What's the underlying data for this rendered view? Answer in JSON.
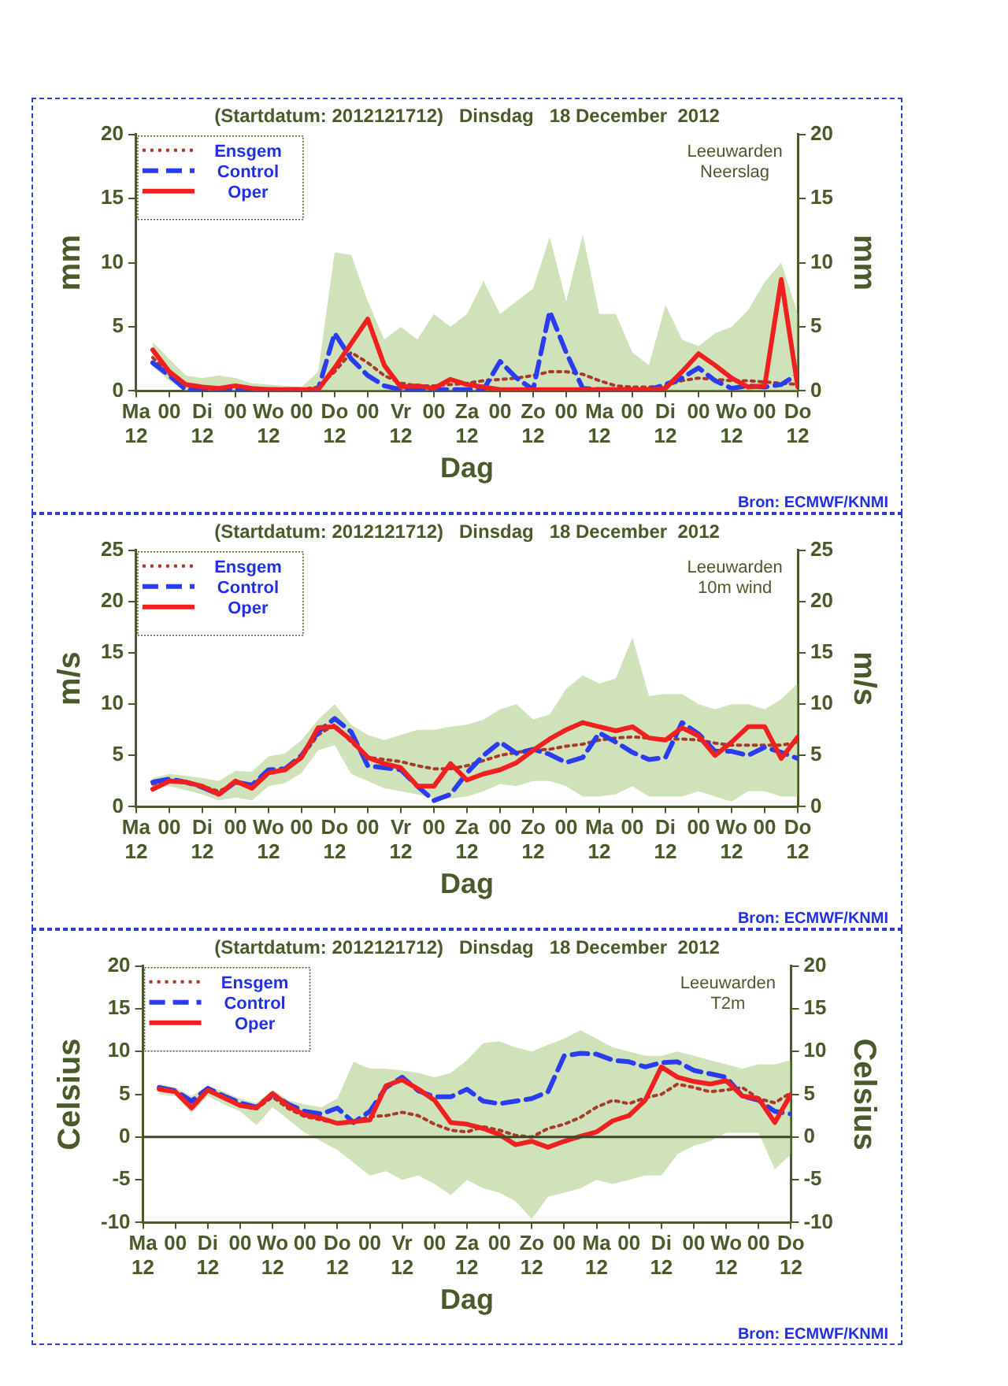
{
  "chart_data": [
    {
      "type": "line",
      "title": "(Startdatum: 2012121712)   Dinsdag   18 December  2012",
      "xlabel": "Dag",
      "ylabel": "mm",
      "y2label": "mm",
      "annotations": [
        "Leeuwarden",
        "Neerslag",
        "Bron: ECMWF/KNMI"
      ],
      "legend": "top left",
      "grid": false,
      "categories": [
        "Ma 12",
        null,
        "00",
        null,
        "Di 12",
        null,
        "00",
        null,
        "Wo 12",
        null,
        "00",
        null,
        "Do 12",
        null,
        "00",
        null,
        "Vr 12",
        null,
        "00",
        null,
        "Za 12",
        null,
        "00",
        null,
        "Zo 12",
        null,
        "00",
        null,
        "Ma 12",
        null,
        "00",
        null,
        "Di 12",
        null,
        "00",
        null,
        "Wo 12",
        null,
        "00",
        null,
        "Do 12"
      ],
      "ylim": [
        0,
        20
      ],
      "yticks": [
        0,
        5,
        10,
        15,
        20
      ],
      "y2lim": [
        0,
        20
      ],
      "y2ticks": [
        0,
        5,
        10,
        15,
        20
      ],
      "series": [
        {
          "name": "Ensgem",
          "color": "#a83a2a",
          "line_style": "dotted",
          "values": [
            null,
            2.6,
            1.3,
            0.4,
            0.3,
            0.2,
            0.3,
            0.2,
            0.1,
            0.1,
            0.1,
            0.3,
            1.5,
            3.0,
            2.2,
            1.2,
            0.6,
            0.4,
            0.4,
            0.5,
            0.6,
            0.8,
            0.9,
            1.0,
            1.2,
            1.5,
            1.5,
            1.3,
            0.8,
            0.4,
            0.3,
            0.3,
            0.4,
            0.8,
            1.0,
            0.9,
            0.8,
            0.8,
            0.7,
            0.6,
            0.5
          ],
          "lower": [
            null,
            1.9,
            0.8,
            0,
            0,
            0,
            0,
            0,
            0,
            0,
            0,
            0,
            0,
            0,
            0,
            0,
            0,
            0,
            0,
            0,
            0,
            0,
            0,
            0,
            0,
            0,
            0,
            0,
            0,
            0,
            0,
            0,
            0,
            0,
            0,
            0,
            0,
            0,
            0,
            0,
            0
          ],
          "upper": [
            null,
            3.8,
            2.5,
            1.2,
            1.0,
            1.2,
            1.0,
            0.6,
            0.5,
            0.4,
            0.3,
            1.5,
            10.8,
            10.6,
            7.0,
            4.0,
            5.0,
            4.0,
            6.0,
            5.0,
            6.0,
            8.6,
            6.0,
            7.0,
            8.0,
            12.0,
            7.0,
            12.2,
            6.0,
            6.0,
            3.0,
            2.0,
            6.7,
            4.0,
            3.5,
            4.5,
            5.0,
            6.3,
            8.5,
            10.0,
            6.0
          ]
        },
        {
          "name": "Control",
          "color": "#2a3cf0",
          "line_style": "dashed",
          "values": [
            null,
            2.2,
            1.2,
            0.1,
            0.1,
            0.1,
            0.1,
            0.1,
            0.1,
            0.1,
            0.1,
            0.1,
            4.5,
            2.5,
            1.2,
            0.4,
            0.1,
            0.1,
            0.1,
            0.1,
            0.1,
            0.1,
            2.3,
            1.0,
            0.1,
            6.2,
            3.0,
            0.2,
            0.1,
            0.1,
            0.1,
            0.1,
            0.5,
            1.0,
            1.8,
            0.8,
            0.2,
            0.4,
            0.3,
            0.5,
            1.3
          ]
        },
        {
          "name": "Oper",
          "color": "#f02020",
          "line_style": "solid",
          "values": [
            null,
            3.2,
            1.5,
            0.5,
            0.3,
            0.2,
            0.4,
            0.2,
            0.1,
            0.1,
            0.1,
            0.1,
            1.8,
            3.7,
            5.6,
            2.0,
            0.3,
            0.4,
            0.2,
            0.9,
            0.5,
            0.3,
            0.1,
            0.1,
            0.1,
            0.1,
            0.1,
            0.1,
            0.1,
            0.1,
            0.1,
            0.1,
            0.2,
            1.5,
            2.9,
            2.0,
            1.0,
            0.3,
            0.4,
            8.7,
            0.3
          ]
        }
      ]
    },
    {
      "type": "line",
      "title": "(Startdatum: 2012121712)   Dinsdag   18 December  2012",
      "xlabel": "Dag",
      "ylabel": "m/s",
      "y2label": "m/s",
      "annotations": [
        "Leeuwarden",
        "10m wind",
        "Bron: ECMWF/KNMI"
      ],
      "legend": "top left",
      "grid": false,
      "categories": [
        "Ma 12",
        null,
        "00",
        null,
        "Di 12",
        null,
        "00",
        null,
        "Wo 12",
        null,
        "00",
        null,
        "Do 12",
        null,
        "00",
        null,
        "Vr 12",
        null,
        "00",
        null,
        "Za 12",
        null,
        "00",
        null,
        "Zo 12",
        null,
        "00",
        null,
        "Ma 12",
        null,
        "00",
        null,
        "Di 12",
        null,
        "00",
        null,
        "Wo 12",
        null,
        "00",
        null,
        "Do 12"
      ],
      "ylim": [
        0,
        25
      ],
      "yticks": [
        0,
        5,
        10,
        15,
        20,
        25
      ],
      "y2lim": [
        0,
        25
      ],
      "y2ticks": [
        0,
        5,
        10,
        15,
        20,
        25
      ],
      "series": [
        {
          "name": "Ensgem",
          "color": "#a83a2a",
          "line_style": "dotted",
          "values": [
            null,
            2.2,
            2.6,
            2.4,
            2.0,
            1.5,
            2.3,
            2.1,
            3.4,
            3.7,
            4.8,
            7.0,
            8.0,
            6.3,
            4.8,
            4.6,
            4.4,
            4.0,
            3.7,
            3.7,
            4.0,
            4.5,
            5.0,
            5.3,
            5.5,
            5.6,
            5.9,
            6.1,
            6.5,
            6.7,
            6.8,
            6.7,
            6.6,
            6.6,
            6.5,
            6.2,
            6.0,
            6.0,
            6.0,
            6.0,
            6.3
          ],
          "lower": [
            null,
            1.8,
            2.0,
            1.6,
            1.2,
            0.6,
            0.9,
            0.6,
            2.0,
            2.3,
            3.3,
            5.5,
            6.0,
            3.2,
            2.5,
            1.8,
            1.5,
            1.2,
            0.8,
            0.8,
            1.0,
            1.5,
            2.2,
            2.0,
            2.5,
            2.5,
            2.0,
            1.0,
            1.0,
            1.2,
            2.0,
            1.0,
            1.0,
            1.0,
            1.5,
            1.0,
            0.5,
            1.5,
            1.5,
            1.0,
            1.0
          ],
          "upper": [
            null,
            2.8,
            3.2,
            3.0,
            2.8,
            2.5,
            3.5,
            3.4,
            4.9,
            5.2,
            6.5,
            8.5,
            10.0,
            8.0,
            7.0,
            6.5,
            7.0,
            7.5,
            7.5,
            7.8,
            8.0,
            8.5,
            9.5,
            10.0,
            8.5,
            9.0,
            11.5,
            12.8,
            12.0,
            12.5,
            16.5,
            10.8,
            11.0,
            11.0,
            10.0,
            9.5,
            10.0,
            10.0,
            9.5,
            10.5,
            12.0
          ]
        },
        {
          "name": "Control",
          "color": "#2a3cf0",
          "line_style": "dashed",
          "values": [
            null,
            2.4,
            2.7,
            2.4,
            1.9,
            1.2,
            2.4,
            2.1,
            3.6,
            3.7,
            5.0,
            7.3,
            8.6,
            7.3,
            4.0,
            3.8,
            3.6,
            2.0,
            0.6,
            1.2,
            3.3,
            5.0,
            6.3,
            5.2,
            5.6,
            5.1,
            4.3,
            4.8,
            7.2,
            6.3,
            5.3,
            4.6,
            4.8,
            8.2,
            7.1,
            5.4,
            5.4,
            5.0,
            5.8,
            5.3,
            4.7
          ]
        },
        {
          "name": "Oper",
          "color": "#f02020",
          "line_style": "solid",
          "values": [
            null,
            1.7,
            2.5,
            2.4,
            2.0,
            1.2,
            2.5,
            1.8,
            3.3,
            3.6,
            4.8,
            7.7,
            7.8,
            6.5,
            4.8,
            4.2,
            3.8,
            2.0,
            2.0,
            4.2,
            2.6,
            3.2,
            3.6,
            4.3,
            5.5,
            6.6,
            7.5,
            8.2,
            7.8,
            7.4,
            7.8,
            6.7,
            6.5,
            7.7,
            6.9,
            5.0,
            6.3,
            7.8,
            7.8,
            4.7,
            6.8
          ]
        }
      ]
    },
    {
      "type": "line",
      "title": "(Startdatum: 2012121712)   Dinsdag   18 December  2012",
      "xlabel": "Dag",
      "ylabel": "Celsius",
      "y2label": "Celsius",
      "annotations": [
        "Leeuwarden",
        "T2m",
        "Bron: ECMWF/KNMI"
      ],
      "legend": "top left",
      "grid": false,
      "categories": [
        "Ma 12",
        null,
        "00",
        null,
        "Di 12",
        null,
        "00",
        null,
        "Wo 12",
        null,
        "00",
        null,
        "Do 12",
        null,
        "00",
        null,
        "Vr 12",
        null,
        "00",
        null,
        "Za 12",
        null,
        "00",
        null,
        "Zo 12",
        null,
        "00",
        null,
        "Ma 12",
        null,
        "00",
        null,
        "Di 12",
        null,
        "00",
        null,
        "Wo 12",
        null,
        "00",
        null,
        "Do 12"
      ],
      "ylim": [
        -10,
        20
      ],
      "yticks": [
        -10,
        -5,
        0,
        5,
        10,
        15,
        20
      ],
      "y2lim": [
        -10,
        20
      ],
      "y2ticks": [
        -10,
        -5,
        0,
        5,
        10,
        15,
        20
      ],
      "ref_lines": [
        {
          "axis": "y",
          "value": 0,
          "color": "#3c4628"
        }
      ],
      "series": [
        {
          "name": "Ensgem",
          "color": "#a83a2a",
          "line_style": "dotted",
          "values": [
            null,
            5.6,
            5.3,
            3.8,
            5.5,
            4.5,
            3.8,
            3.3,
            4.7,
            3.3,
            2.4,
            2.0,
            1.6,
            1.8,
            2.4,
            2.5,
            2.9,
            2.5,
            1.5,
            0.8,
            0.6,
            1.2,
            0.8,
            0.2,
            0.0,
            1.0,
            1.5,
            2.3,
            3.5,
            4.3,
            3.9,
            4.6,
            5.0,
            6.2,
            5.8,
            5.3,
            5.5,
            5.8,
            4.5,
            4.0,
            5.2
          ],
          "lower": [
            null,
            5.0,
            4.8,
            2.8,
            4.8,
            3.8,
            3.0,
            1.4,
            3.5,
            2.0,
            0.5,
            -0.5,
            -1.5,
            -3.0,
            -4.5,
            -4.0,
            -5.0,
            -4.5,
            -5.5,
            -6.8,
            -5.0,
            -6.0,
            -6.5,
            -7.5,
            -9.6,
            -7.0,
            -6.5,
            -6.0,
            -5.0,
            -5.5,
            -5.0,
            -4.5,
            -4.5,
            -2.0,
            -1.0,
            -0.5,
            0.5,
            0.5,
            0.5,
            -3.8,
            -2.0
          ],
          "upper": [
            null,
            6.2,
            5.8,
            4.8,
            6.0,
            5.3,
            4.5,
            4.0,
            5.5,
            4.3,
            3.8,
            3.5,
            4.5,
            8.8,
            8.0,
            8.0,
            7.8,
            7.5,
            7.0,
            7.5,
            9.0,
            11.0,
            11.2,
            10.5,
            10.0,
            10.8,
            11.5,
            12.5,
            11.5,
            10.5,
            10.0,
            9.5,
            9.5,
            10.0,
            9.5,
            9.0,
            8.5,
            8.0,
            8.5,
            8.5,
            9.0
          ]
        },
        {
          "name": "Control",
          "color": "#2a3cf0",
          "line_style": "dashed",
          "values": [
            null,
            5.8,
            5.4,
            4.2,
            5.7,
            4.8,
            4.0,
            3.5,
            5.0,
            3.8,
            3.0,
            2.7,
            3.4,
            1.7,
            3.0,
            5.8,
            7.0,
            5.4,
            4.7,
            4.7,
            5.6,
            4.2,
            3.9,
            4.2,
            4.5,
            5.3,
            9.5,
            9.8,
            9.7,
            9.0,
            8.8,
            8.2,
            8.7,
            8.8,
            7.8,
            7.4,
            7.0,
            4.8,
            4.3,
            3.0,
            2.7
          ]
        },
        {
          "name": "Oper",
          "color": "#f02020",
          "line_style": "solid",
          "values": [
            null,
            5.6,
            5.3,
            3.4,
            5.5,
            4.6,
            3.7,
            3.4,
            5.1,
            3.6,
            2.6,
            2.2,
            1.6,
            1.8,
            2.0,
            6.0,
            6.7,
            5.6,
            4.3,
            1.7,
            1.5,
            1.0,
            0.3,
            -0.9,
            -0.5,
            -1.2,
            -0.5,
            0.1,
            0.6,
            1.9,
            2.5,
            4.3,
            8.2,
            7.0,
            6.5,
            6.2,
            6.6,
            4.8,
            4.5,
            1.7,
            5.0
          ]
        }
      ]
    }
  ]
}
